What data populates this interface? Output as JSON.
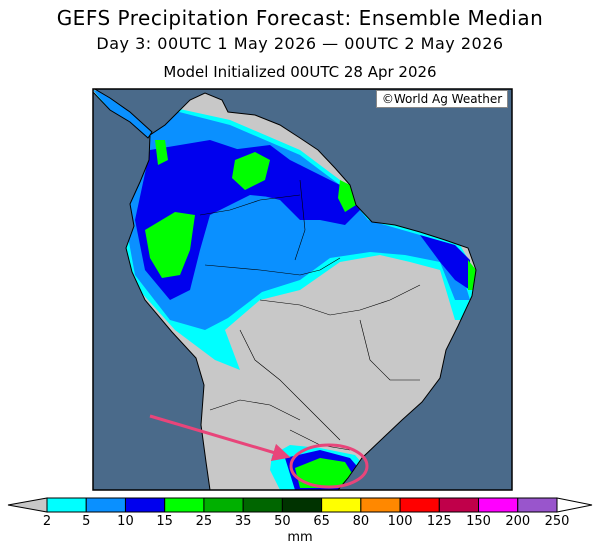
{
  "title": {
    "line1": "GEFS Precipitation Forecast: Ensemble Median",
    "line2": "Day 3: 00UTC 1 May 2026 — 00UTC 2 May 2026",
    "line3": "Model Initialized 00UTC 28 Apr 2026"
  },
  "copyright": "©World Ag Weather",
  "map": {
    "ocean_color": "#4a6a8a",
    "land_color": "#c8c8c8",
    "annotation_color": "#e8457a",
    "annotations": [
      "arrow",
      "circle"
    ]
  },
  "colorbar": {
    "unit": "mm",
    "labels": [
      "2",
      "5",
      "10",
      "15",
      "25",
      "35",
      "50",
      "65",
      "80",
      "100",
      "125",
      "150",
      "200",
      "250"
    ],
    "colors": [
      "#00ffff",
      "#0a90ff",
      "#0000ee",
      "#00ff00",
      "#00b000",
      "#006600",
      "#003300",
      "#ffff00",
      "#ff8800",
      "#ff0000",
      "#c0004a",
      "#ff00ff",
      "#9955cc"
    ],
    "under_color": "#c8c8c8",
    "over_color": "#ffffff"
  }
}
